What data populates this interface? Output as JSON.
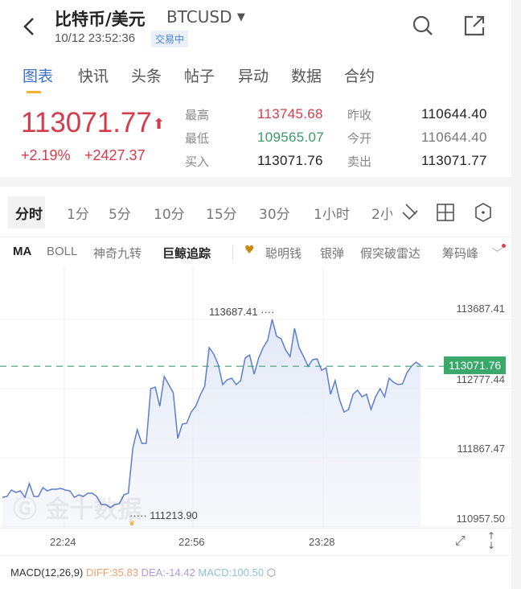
{
  "header": {
    "title": "比特币/美元",
    "symbol": "BTCUSD",
    "datetime": "10/12 23:52:36",
    "status": "交易中"
  },
  "tabs": [
    {
      "label": "图表",
      "active": true
    },
    {
      "label": "快讯"
    },
    {
      "label": "头条"
    },
    {
      "label": "帖子"
    },
    {
      "label": "异动"
    },
    {
      "label": "数据"
    },
    {
      "label": "合约"
    }
  ],
  "quote": {
    "price": "113071.77",
    "change_pct": "+2.19%",
    "change": "+2427.37",
    "high_label": "最高",
    "high": "113745.68",
    "low_label": "最低",
    "low": "109565.07",
    "bid_label": "买入",
    "bid": "113071.76",
    "prev_close_label": "昨收",
    "prev_close": "110644.40",
    "open_label": "今开",
    "open": "110644.40",
    "ask_label": "卖出",
    "ask": "113071.77"
  },
  "periods": [
    "分时",
    "1分",
    "5分",
    "10分",
    "15分",
    "30分",
    "1小时",
    "2小"
  ],
  "indicators": [
    "MA",
    "BOLL",
    "神奇九转",
    "巨鲸追踪",
    "聪明钱",
    "银弹",
    "假突破雷达",
    "筹码峰"
  ],
  "watermark": "金十数据",
  "colors": {
    "up": "#d43c4c",
    "down": "#3a9a6a",
    "accent": "#3d6fd0",
    "line": "#5b7fcf",
    "current": "#3aa86a"
  },
  "chart_data": {
    "type": "area",
    "x_ticks": [
      "22:24",
      "22:56",
      "23:28"
    ],
    "y_ticks": [
      "113687.41",
      "112777.44",
      "111867.47",
      "110957.50"
    ],
    "ylim": [
      110957.5,
      113687.41
    ],
    "x_start": "22:08",
    "x_end": "23:52",
    "max_label": "113687.41",
    "min_label": "111213.90",
    "current_label": "113071.76",
    "current": 113071.76,
    "values": [
      111349,
      111360,
      111444,
      111412,
      111434,
      111349,
      111529,
      111360,
      111360,
      111476,
      111434,
      111455,
      111455,
      111465,
      111444,
      111434,
      111349,
      111381,
      111360,
      111402,
      111402,
      111360,
      111254,
      111254,
      111213.9,
      111254,
      111264,
      111381,
      111402,
      111994,
      112238,
      112058,
      112058,
      112777,
      112798,
      112545,
      112936,
      112830,
      112724,
      112121,
      112312,
      112322,
      112470,
      112545,
      112693,
      112809,
      113317,
      113232,
      113095,
      112830,
      112894,
      112915,
      112830,
      112883,
      113179,
      113221,
      112968,
      113179,
      113317,
      113412,
      113687.41,
      113465,
      113433,
      113285,
      113200,
      113571,
      113317,
      113200,
      113073,
      113158,
      113169,
      113020,
      113052,
      112703,
      112883,
      112629,
      112470,
      112502,
      112703,
      112756,
      112671,
      112703,
      112502,
      112671,
      112777,
      112671,
      112915,
      112861,
      112830,
      112840,
      112988,
      113073,
      113126,
      113084
    ],
    "grid": true
  },
  "macd": {
    "label": "MACD(12,26,9)",
    "diff": "DIFF:35.83",
    "dea": "DEA:-14.42",
    "macd": "MACD:100.50"
  }
}
